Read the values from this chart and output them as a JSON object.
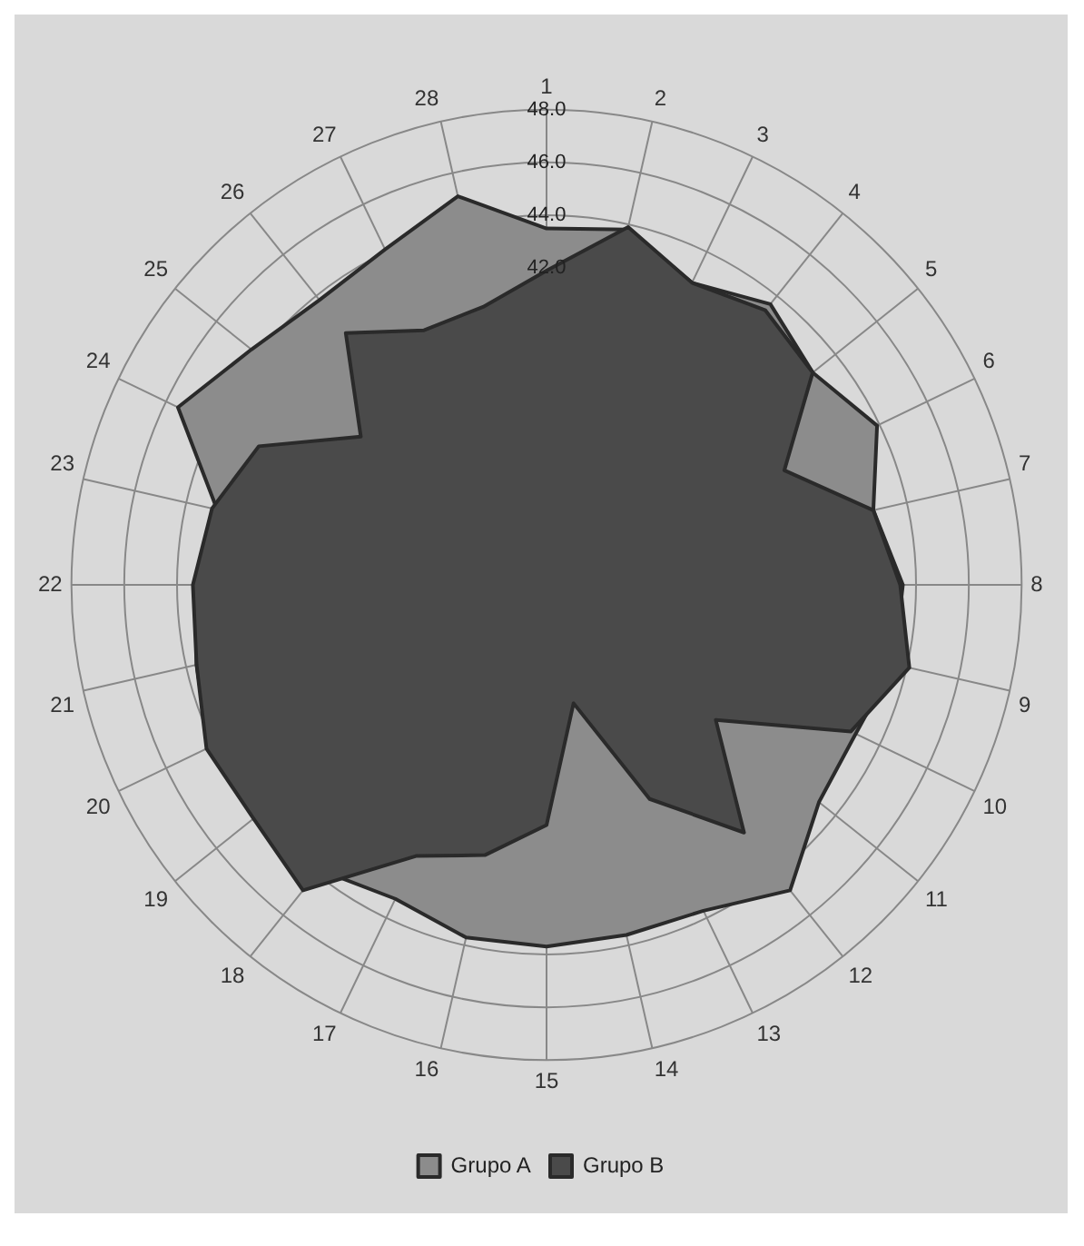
{
  "chart_data": {
    "type": "radar",
    "categories": [
      "1",
      "2",
      "3",
      "4",
      "5",
      "6",
      "7",
      "8",
      "9",
      "10",
      "11",
      "12",
      "13",
      "14",
      "15",
      "16",
      "17",
      "18",
      "19",
      "20",
      "21",
      "22",
      "23",
      "24",
      "25",
      "26",
      "27",
      "28"
    ],
    "series": [
      {
        "name": "Grupo A",
        "color": "#8c8c8c",
        "values": [
          43.5,
          43.8,
          42.7,
          43.6,
          42.9,
          43.9,
          42.7,
          43.5,
          43.5,
          43.0,
          43.2,
          44.8,
          43.7,
          43.6,
          43.7,
          43.7,
          43.2,
          43.8,
          44.0,
          44.2,
          43.6,
          43.3,
          42.8,
          45.5,
          44.3,
          43.8,
          44.1,
          45.1
        ]
      },
      {
        "name": "Grupo B",
        "color": "#4a4a4a",
        "values": [
          41.9,
          43.9,
          42.7,
          43.3,
          42.9,
          40.0,
          42.7,
          43.4,
          44.1,
          42.8,
          38.2,
          42.0,
          39.0,
          34.6,
          39.1,
          40.5,
          41.4,
          44.8,
          44.2,
          44.3,
          43.6,
          43.4,
          43.0,
          42.1,
          39.0,
          42.2,
          40.7,
          40.8
        ]
      }
    ],
    "ylim": [
      30,
      48
    ],
    "yticks": [
      {
        "value": 42,
        "label": "42.0"
      },
      {
        "value": 44,
        "label": "44.0"
      },
      {
        "value": 46,
        "label": "46.0"
      },
      {
        "value": 48,
        "label": "48.0"
      }
    ],
    "grid": true,
    "legend": "bottom"
  }
}
